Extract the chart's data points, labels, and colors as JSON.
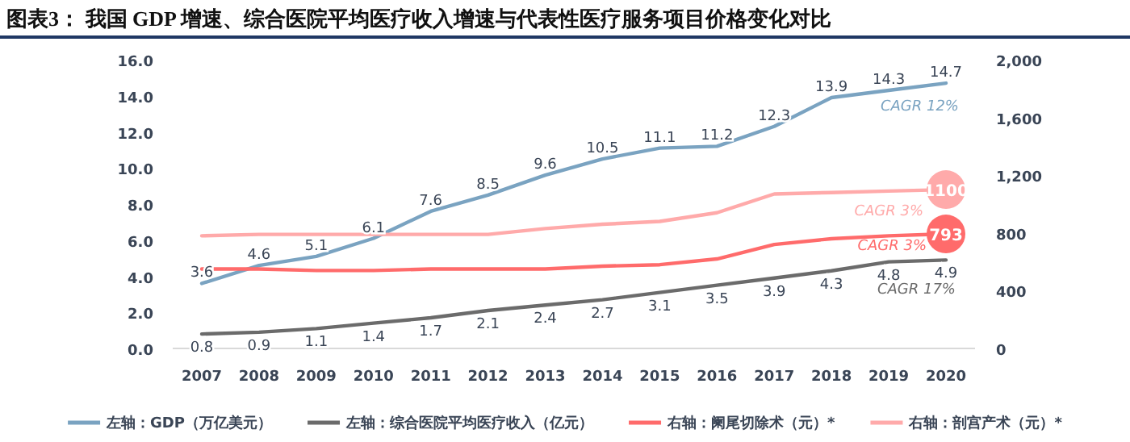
{
  "chart_data": {
    "type": "line",
    "title": "图表3：   我国 GDP 增速、综合医院平均医疗收入增速与代表性医疗服务项目价格变化对比",
    "categories": [
      "2007",
      "2008",
      "2009",
      "2010",
      "2011",
      "2012",
      "2013",
      "2014",
      "2015",
      "2016",
      "2017",
      "2018",
      "2019",
      "2020"
    ],
    "series": [
      {
        "name": "左轴：GDP（万亿美元）",
        "color": "#7aa3c1",
        "values": [
          3.6,
          4.6,
          5.1,
          6.1,
          7.6,
          8.5,
          9.6,
          10.5,
          11.1,
          11.2,
          12.3,
          13.9,
          14.3,
          14.7
        ],
        "data_labels": true
      },
      {
        "name": "左轴：综合医院平均医疗收入（亿元）",
        "color": "#6b6b6b",
        "values": [
          0.8,
          0.9,
          1.1,
          1.4,
          1.7,
          2.1,
          2.4,
          2.7,
          3.1,
          3.5,
          3.9,
          4.3,
          4.8,
          4.9
        ],
        "data_labels": true
      },
      {
        "name": "右轴：阑尾切除术（元）*",
        "color": "#ff6b6b",
        "axis": "y2",
        "values": [
          550,
          550,
          540,
          540,
          550,
          550,
          550,
          570,
          580,
          620,
          720,
          760,
          780,
          793
        ],
        "value_labels": [
          null,
          null,
          null,
          null,
          null,
          null,
          null,
          null,
          null,
          null,
          null,
          null,
          null,
          "793"
        ]
      },
      {
        "name": "右轴：剖宫产术（元）*",
        "color": "#ffaaaa",
        "axis": "y2",
        "values": [
          780,
          790,
          790,
          790,
          790,
          790,
          830,
          860,
          880,
          940,
          1070,
          1080,
          1090,
          1100
        ],
        "value_labels": [
          null,
          null,
          null,
          null,
          null,
          null,
          null,
          null,
          null,
          null,
          null,
          null,
          null,
          "1100"
        ]
      }
    ],
    "ylim": [
      0,
      16
    ],
    "yticks": [
      {
        "value": 0,
        "label": "0.0"
      },
      {
        "value": 2,
        "label": "2.0"
      },
      {
        "value": 4,
        "label": "4.0"
      },
      {
        "value": 6,
        "label": "6.0"
      },
      {
        "value": 8,
        "label": "8.0"
      },
      {
        "value": 10,
        "label": "10.0"
      },
      {
        "value": 12,
        "label": "12.0"
      },
      {
        "value": 14,
        "label": "14.0"
      },
      {
        "value": 16,
        "label": "16.0"
      }
    ],
    "y2lim": [
      0,
      2000
    ],
    "y2ticks": [
      0,
      400,
      800,
      {
        "value": 1200,
        "label": "1,200"
      },
      {
        "value": 1600,
        "label": "1,600"
      },
      {
        "value": 2000,
        "label": "2,000"
      }
    ],
    "annotations": [
      "CAGR 12%",
      "CAGR 3%",
      "CAGR 3%",
      "CAGR 17%"
    ],
    "grid": false,
    "legend": "bottom",
    "marker": "none",
    "line_style": "solid"
  }
}
